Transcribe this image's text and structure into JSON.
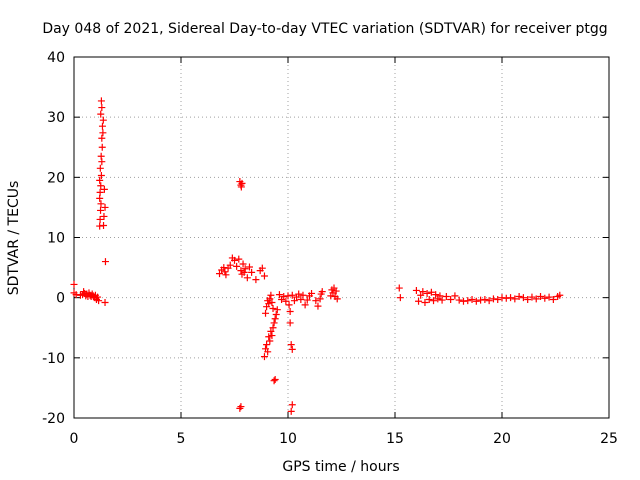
{
  "chart_data": {
    "type": "scatter",
    "title": "Day 048 of 2021, Sidereal Day-to-day VTEC variation (SDTVAR) for receiver ptgg",
    "xlabel": "GPS time / hours",
    "ylabel": "SDTVAR / TECUs",
    "xlim": [
      0,
      25
    ],
    "ylim": [
      -20,
      40
    ],
    "x_ticks": [
      0,
      5,
      10,
      15,
      20,
      25
    ],
    "y_ticks": [
      -20,
      -10,
      0,
      10,
      20,
      30,
      40
    ],
    "x_tick_labels": [
      "0",
      "5",
      "10",
      "15",
      "20",
      "25"
    ],
    "y_tick_labels": [
      "-20",
      "-10",
      "0",
      "10",
      "20",
      "30",
      "40"
    ],
    "grid": true,
    "marker": "plus",
    "color": "#ff0000",
    "series": [
      {
        "name": "SDTVAR",
        "points": [
          [
            0.0,
            2.2
          ],
          [
            0.0,
            0.8
          ],
          [
            0.1,
            0.5
          ],
          [
            0.3,
            0.4
          ],
          [
            0.4,
            0.5
          ],
          [
            0.45,
            1.0
          ],
          [
            0.5,
            0.7
          ],
          [
            0.55,
            0.3
          ],
          [
            0.6,
            0.6
          ],
          [
            0.65,
            0.2
          ],
          [
            0.7,
            0.8
          ],
          [
            0.75,
            0.4
          ],
          [
            0.8,
            0.2
          ],
          [
            0.85,
            0.6
          ],
          [
            0.9,
            0.3
          ],
          [
            0.95,
            0.0
          ],
          [
            1.0,
            0.4
          ],
          [
            1.05,
            -0.3
          ],
          [
            1.1,
            0.1
          ],
          [
            1.15,
            -0.5
          ],
          [
            1.2,
            11.9
          ],
          [
            1.22,
            13.0
          ],
          [
            1.24,
            14.5
          ],
          [
            1.26,
            15.6
          ],
          [
            1.2,
            16.5
          ],
          [
            1.22,
            17.5
          ],
          [
            1.25,
            18.6
          ],
          [
            1.2,
            19.5
          ],
          [
            1.28,
            20.3
          ],
          [
            1.23,
            21.5
          ],
          [
            1.3,
            22.6
          ],
          [
            1.27,
            23.5
          ],
          [
            1.32,
            25.0
          ],
          [
            1.3,
            26.5
          ],
          [
            1.35,
            27.4
          ],
          [
            1.33,
            28.5
          ],
          [
            1.37,
            29.5
          ],
          [
            1.25,
            30.5
          ],
          [
            1.3,
            31.6
          ],
          [
            1.28,
            32.7
          ],
          [
            1.4,
            13.5
          ],
          [
            1.38,
            12.0
          ],
          [
            1.42,
            18.0
          ],
          [
            1.45,
            15.0
          ],
          [
            1.47,
            6.0
          ],
          [
            1.45,
            -0.8
          ],
          [
            6.8,
            4.0
          ],
          [
            6.9,
            4.6
          ],
          [
            7.0,
            5.0
          ],
          [
            7.05,
            4.3
          ],
          [
            7.1,
            3.8
          ],
          [
            7.2,
            4.9
          ],
          [
            7.3,
            5.4
          ],
          [
            7.4,
            6.6
          ],
          [
            7.5,
            6.2
          ],
          [
            7.6,
            5.2
          ],
          [
            7.7,
            6.4
          ],
          [
            7.8,
            4.5
          ],
          [
            7.85,
            3.9
          ],
          [
            7.9,
            5.6
          ],
          [
            7.95,
            4.2
          ],
          [
            8.0,
            4.8
          ],
          [
            7.75,
            19.3
          ],
          [
            7.8,
            18.7
          ],
          [
            7.85,
            19.0
          ],
          [
            7.82,
            18.4
          ],
          [
            7.8,
            -18.1
          ],
          [
            7.75,
            -18.4
          ],
          [
            8.1,
            3.3
          ],
          [
            8.2,
            5.1
          ],
          [
            8.3,
            4.2
          ],
          [
            8.5,
            3.0
          ],
          [
            8.7,
            4.5
          ],
          [
            8.8,
            4.9
          ],
          [
            8.9,
            3.6
          ],
          [
            8.9,
            -9.8
          ],
          [
            8.95,
            -8.5
          ],
          [
            9.0,
            -7.8
          ],
          [
            9.05,
            -9.0
          ],
          [
            9.1,
            -6.5
          ],
          [
            9.15,
            -7.2
          ],
          [
            9.2,
            -5.6
          ],
          [
            9.25,
            -6.3
          ],
          [
            9.3,
            -5.0
          ],
          [
            9.35,
            -4.2
          ],
          [
            9.4,
            -3.5
          ],
          [
            9.45,
            -2.8
          ],
          [
            9.5,
            -2.0
          ],
          [
            8.95,
            -2.6
          ],
          [
            9.0,
            -1.5
          ],
          [
            9.05,
            -0.5
          ],
          [
            9.1,
            -1.0
          ],
          [
            9.15,
            -0.2
          ],
          [
            9.2,
            0.4
          ],
          [
            9.25,
            -0.8
          ],
          [
            9.3,
            -1.8
          ],
          [
            9.35,
            -13.8
          ],
          [
            9.4,
            -13.6
          ],
          [
            9.6,
            0.5
          ],
          [
            9.7,
            -0.3
          ],
          [
            9.8,
            0.2
          ],
          [
            9.9,
            -0.6
          ],
          [
            10.0,
            0.3
          ],
          [
            10.05,
            -1.2
          ],
          [
            10.1,
            -2.3
          ],
          [
            10.1,
            -4.2
          ],
          [
            10.15,
            -7.8
          ],
          [
            10.2,
            -8.6
          ],
          [
            10.2,
            -17.8
          ],
          [
            10.15,
            -18.9
          ],
          [
            10.2,
            0.4
          ],
          [
            10.3,
            -0.5
          ],
          [
            10.4,
            0.1
          ],
          [
            10.5,
            0.6
          ],
          [
            10.6,
            -0.3
          ],
          [
            10.7,
            0.4
          ],
          [
            10.8,
            -1.2
          ],
          [
            10.9,
            -0.4
          ],
          [
            11.0,
            0.3
          ],
          [
            11.1,
            0.7
          ],
          [
            11.3,
            -0.5
          ],
          [
            11.4,
            -1.4
          ],
          [
            11.5,
            -0.2
          ],
          [
            11.55,
            0.6
          ],
          [
            11.6,
            1.0
          ],
          [
            12.0,
            0.3
          ],
          [
            12.05,
            1.3
          ],
          [
            12.1,
            0.8
          ],
          [
            12.15,
            1.6
          ],
          [
            12.2,
            0.2
          ],
          [
            12.25,
            1.1
          ],
          [
            12.3,
            -0.2
          ],
          [
            15.2,
            1.6
          ],
          [
            15.25,
            0.0
          ],
          [
            16.0,
            1.2
          ],
          [
            16.1,
            -0.6
          ],
          [
            16.2,
            0.4
          ],
          [
            16.3,
            1.0
          ],
          [
            16.4,
            -0.8
          ],
          [
            16.5,
            0.7
          ],
          [
            16.6,
            -0.3
          ],
          [
            16.7,
            0.9
          ],
          [
            16.8,
            -0.5
          ],
          [
            16.9,
            0.5
          ],
          [
            17.0,
            -0.2
          ],
          [
            17.1,
            0.3
          ],
          [
            17.2,
            -0.4
          ],
          [
            17.4,
            0.2
          ],
          [
            17.6,
            -0.3
          ],
          [
            17.8,
            0.3
          ],
          [
            18.0,
            -0.4
          ],
          [
            18.2,
            -0.6
          ],
          [
            18.4,
            -0.5
          ],
          [
            18.6,
            -0.3
          ],
          [
            18.8,
            -0.6
          ],
          [
            19.0,
            -0.4
          ],
          [
            19.2,
            -0.3
          ],
          [
            19.4,
            -0.5
          ],
          [
            19.6,
            -0.2
          ],
          [
            19.8,
            -0.3
          ],
          [
            20.0,
            0.0
          ],
          [
            20.2,
            -0.1
          ],
          [
            20.4,
            0.0
          ],
          [
            20.6,
            -0.2
          ],
          [
            20.8,
            0.2
          ],
          [
            21.0,
            0.0
          ],
          [
            21.2,
            -0.3
          ],
          [
            21.4,
            0.1
          ],
          [
            21.6,
            -0.2
          ],
          [
            21.8,
            0.2
          ],
          [
            22.0,
            -0.1
          ],
          [
            22.2,
            0.1
          ],
          [
            22.4,
            -0.3
          ],
          [
            22.6,
            0.2
          ],
          [
            22.7,
            0.4
          ]
        ]
      }
    ]
  }
}
